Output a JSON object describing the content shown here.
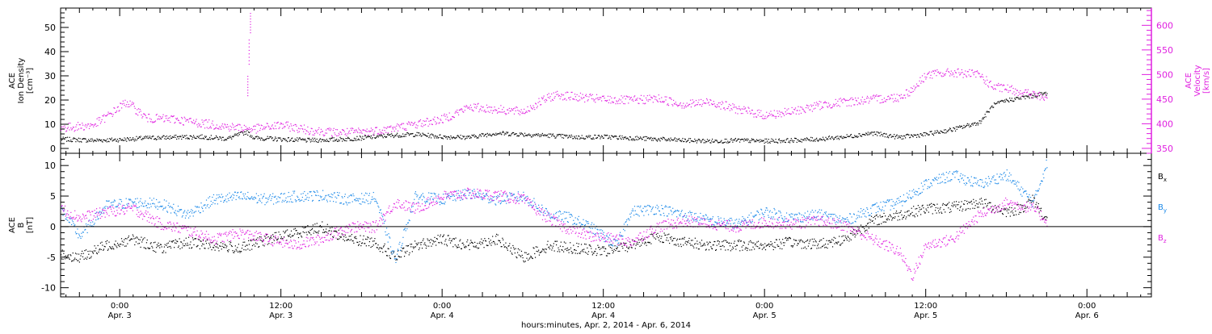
{
  "figure": {
    "xlabel": "hours:minutes, Apr.  2, 2014 - Apr.  6, 2014",
    "x_ticks": [
      {
        "time": "0:00",
        "date": "Apr. 3",
        "hours": 24
      },
      {
        "time": "12:00",
        "date": "Apr. 3",
        "hours": 36
      },
      {
        "time": "0:00",
        "date": "Apr. 4",
        "hours": 48
      },
      {
        "time": "12:00",
        "date": "Apr. 4",
        "hours": 60
      },
      {
        "time": "0:00",
        "date": "Apr. 5",
        "hours": 72
      },
      {
        "time": "12:00",
        "date": "Apr. 5",
        "hours": 84
      },
      {
        "time": "0:00",
        "date": "Apr. 6",
        "hours": 96
      }
    ],
    "xlim_hours": [
      19.6,
      100.8
    ]
  },
  "chart_data": [
    {
      "type": "scatter",
      "panel": "top",
      "left_axis": {
        "label_lines": [
          "ACE",
          "Ion Density",
          "[cm⁻³]"
        ],
        "ylim": [
          -2,
          58
        ],
        "ticks": [
          "0",
          "10",
          "20",
          "30",
          "40",
          "50"
        ],
        "color": "#000000"
      },
      "right_axis": {
        "label_lines": [
          "ACE",
          "Velocity",
          "[km/s]"
        ],
        "ylim": [
          340,
          635
        ],
        "ticks": [
          "350",
          "400",
          "450",
          "500",
          "550",
          "600"
        ],
        "color": "#e020e0"
      },
      "series": [
        {
          "axis": "left",
          "color": "#000000",
          "points": [
            [
              19.6,
              4
            ],
            [
              22,
              3.5
            ],
            [
              24,
              3.8
            ],
            [
              26,
              4.5
            ],
            [
              28,
              4.8
            ],
            [
              30,
              5
            ],
            [
              32,
              4.2
            ],
            [
              33.4,
              7
            ],
            [
              34,
              4.5
            ],
            [
              36,
              4
            ],
            [
              38,
              3.5
            ],
            [
              40,
              3.8
            ],
            [
              42,
              4.5
            ],
            [
              44,
              5.5
            ],
            [
              46,
              6
            ],
            [
              48,
              5
            ],
            [
              50,
              4.8
            ],
            [
              52,
              6.5
            ],
            [
              54,
              6
            ],
            [
              56,
              5.5
            ],
            [
              58,
              4.8
            ],
            [
              60,
              5
            ],
            [
              62,
              4.5
            ],
            [
              64,
              4
            ],
            [
              66,
              3.5
            ],
            [
              68,
              3.2
            ],
            [
              70,
              3.5
            ],
            [
              72,
              3.2
            ],
            [
              74,
              3.5
            ],
            [
              76,
              4
            ],
            [
              78,
              5
            ],
            [
              80,
              6.5
            ],
            [
              82,
              4.8
            ],
            [
              84,
              6
            ],
            [
              86,
              8
            ],
            [
              88,
              11
            ],
            [
              89,
              18
            ],
            [
              90,
              20
            ],
            [
              92,
              22
            ],
            [
              93,
              23
            ]
          ],
          "spikes": [
            [
              33.5,
              22,
              30
            ],
            [
              33.6,
              35,
              45
            ],
            [
              33.7,
              48,
              56
            ]
          ]
        },
        {
          "axis": "right",
          "color": "#e020e0",
          "points": [
            [
              19.6,
              392
            ],
            [
              22,
              398
            ],
            [
              23,
              415
            ],
            [
              24.5,
              445
            ],
            [
              26,
              412
            ],
            [
              28,
              410
            ],
            [
              30,
              402
            ],
            [
              32,
              395
            ],
            [
              34,
              390
            ],
            [
              36,
              398
            ],
            [
              38,
              388
            ],
            [
              40,
              383
            ],
            [
              42,
              384
            ],
            [
              44,
              390
            ],
            [
              46,
              400
            ],
            [
              48,
              410
            ],
            [
              50,
              435
            ],
            [
              52,
              430
            ],
            [
              54,
              425
            ],
            [
              55.6,
              450
            ],
            [
              56.5,
              460
            ],
            [
              58,
              455
            ],
            [
              60,
              450
            ],
            [
              62,
              448
            ],
            [
              64,
              452
            ],
            [
              66,
              440
            ],
            [
              68,
              445
            ],
            [
              70,
              430
            ],
            [
              72,
              418
            ],
            [
              74,
              425
            ],
            [
              76,
              438
            ],
            [
              78,
              445
            ],
            [
              80,
              450
            ],
            [
              82,
              455
            ],
            [
              83,
              470
            ],
            [
              84,
              500
            ],
            [
              86,
              505
            ],
            [
              88,
              500
            ],
            [
              89,
              475
            ],
            [
              90,
              472
            ],
            [
              92,
              460
            ],
            [
              93,
              452
            ]
          ]
        }
      ]
    },
    {
      "type": "scatter",
      "panel": "bottom",
      "left_axis": {
        "label_lines": [
          "ACE",
          "B",
          "[nT]"
        ],
        "ylim": [
          -11.5,
          12
        ],
        "ticks": [
          "-10",
          "-5",
          "0",
          "5",
          "10"
        ],
        "color": "#000000"
      },
      "legend": [
        {
          "label": "Bx",
          "color": "#000000"
        },
        {
          "label": "By",
          "color": "#1a88e8"
        },
        {
          "label": "Bz",
          "color": "#e020e0"
        }
      ],
      "series": [
        {
          "name": "Bx",
          "color": "#000000",
          "points": [
            [
              19.6,
              -4.5
            ],
            [
              21,
              -5
            ],
            [
              23,
              -3
            ],
            [
              25,
              -2
            ],
            [
              27,
              -3.5
            ],
            [
              29,
              -2.5
            ],
            [
              31,
              -3
            ],
            [
              33,
              -3.5
            ],
            [
              35,
              -2
            ],
            [
              37,
              -1
            ],
            [
              39,
              0
            ],
            [
              41,
              -2
            ],
            [
              43,
              -2.5
            ],
            [
              44.5,
              -5
            ],
            [
              46,
              -3
            ],
            [
              48,
              -2
            ],
            [
              50,
              -3
            ],
            [
              52,
              -2
            ],
            [
              54,
              -5
            ],
            [
              56,
              -3
            ],
            [
              58,
              -3.5
            ],
            [
              60,
              -4
            ],
            [
              62,
              -3
            ],
            [
              64,
              -1.5
            ],
            [
              66,
              -2.5
            ],
            [
              68,
              -3
            ],
            [
              70,
              -3
            ],
            [
              72,
              -3
            ],
            [
              74,
              -2.5
            ],
            [
              76,
              -2.8
            ],
            [
              78,
              -2
            ],
            [
              80,
              1
            ],
            [
              82,
              2
            ],
            [
              84,
              3
            ],
            [
              86,
              3.2
            ],
            [
              88,
              4
            ],
            [
              90,
              2.5
            ],
            [
              91,
              3
            ],
            [
              92,
              4.5
            ],
            [
              93,
              1
            ]
          ]
        },
        {
          "name": "By",
          "color": "#1a88e8",
          "points": [
            [
              19.6,
              3
            ],
            [
              21,
              -1.5
            ],
            [
              23,
              3.5
            ],
            [
              25,
              4
            ],
            [
              27,
              3.8
            ],
            [
              29,
              2
            ],
            [
              31,
              4.5
            ],
            [
              33,
              5
            ],
            [
              35,
              4.5
            ],
            [
              37,
              5
            ],
            [
              39,
              5.2
            ],
            [
              41,
              4.5
            ],
            [
              43,
              4.8
            ],
            [
              44.5,
              -5.5
            ],
            [
              46,
              5
            ],
            [
              48,
              4.5
            ],
            [
              50,
              5.5
            ],
            [
              52,
              4.5
            ],
            [
              54,
              5
            ],
            [
              56,
              2
            ],
            [
              57.5,
              1.5
            ],
            [
              59,
              0
            ],
            [
              61,
              -3
            ],
            [
              62,
              2.5
            ],
            [
              64,
              3
            ],
            [
              66,
              2
            ],
            [
              68,
              1
            ],
            [
              70,
              0.5
            ],
            [
              72,
              2.5
            ],
            [
              74,
              1.5
            ],
            [
              76,
              2
            ],
            [
              78,
              1
            ],
            [
              80,
              3
            ],
            [
              82,
              4
            ],
            [
              84,
              7
            ],
            [
              86,
              8.5
            ],
            [
              88,
              7
            ],
            [
              90,
              8.5
            ],
            [
              92,
              4
            ],
            [
              93,
              10.5
            ]
          ]
        },
        {
          "name": "Bz",
          "color": "#e020e0",
          "points": [
            [
              19.6,
              3
            ],
            [
              21,
              1.5
            ],
            [
              23,
              2.5
            ],
            [
              25,
              3
            ],
            [
              27,
              0.5
            ],
            [
              29,
              -0.5
            ],
            [
              31,
              -2
            ],
            [
              33,
              -1
            ],
            [
              35,
              -2
            ],
            [
              37,
              -3
            ],
            [
              39,
              -2
            ],
            [
              41,
              0
            ],
            [
              43,
              0
            ],
            [
              44.5,
              4
            ],
            [
              46,
              3
            ],
            [
              48,
              5
            ],
            [
              50,
              5.5
            ],
            [
              52,
              5.2
            ],
            [
              54,
              4.5
            ],
            [
              55.5,
              2
            ],
            [
              57,
              0
            ],
            [
              59,
              -1.5
            ],
            [
              61,
              -2
            ],
            [
              62,
              -2.5
            ],
            [
              64,
              0
            ],
            [
              66,
              1
            ],
            [
              68,
              0.5
            ],
            [
              70,
              0
            ],
            [
              72,
              0.8
            ],
            [
              74,
              0.5
            ],
            [
              76,
              1
            ],
            [
              78,
              0.2
            ],
            [
              80,
              -2
            ],
            [
              82,
              -4
            ],
            [
              83,
              -8
            ],
            [
              84,
              -3
            ],
            [
              86,
              -2
            ],
            [
              88,
              2
            ],
            [
              90,
              4
            ],
            [
              92,
              3
            ],
            [
              93,
              1
            ]
          ]
        }
      ]
    }
  ]
}
